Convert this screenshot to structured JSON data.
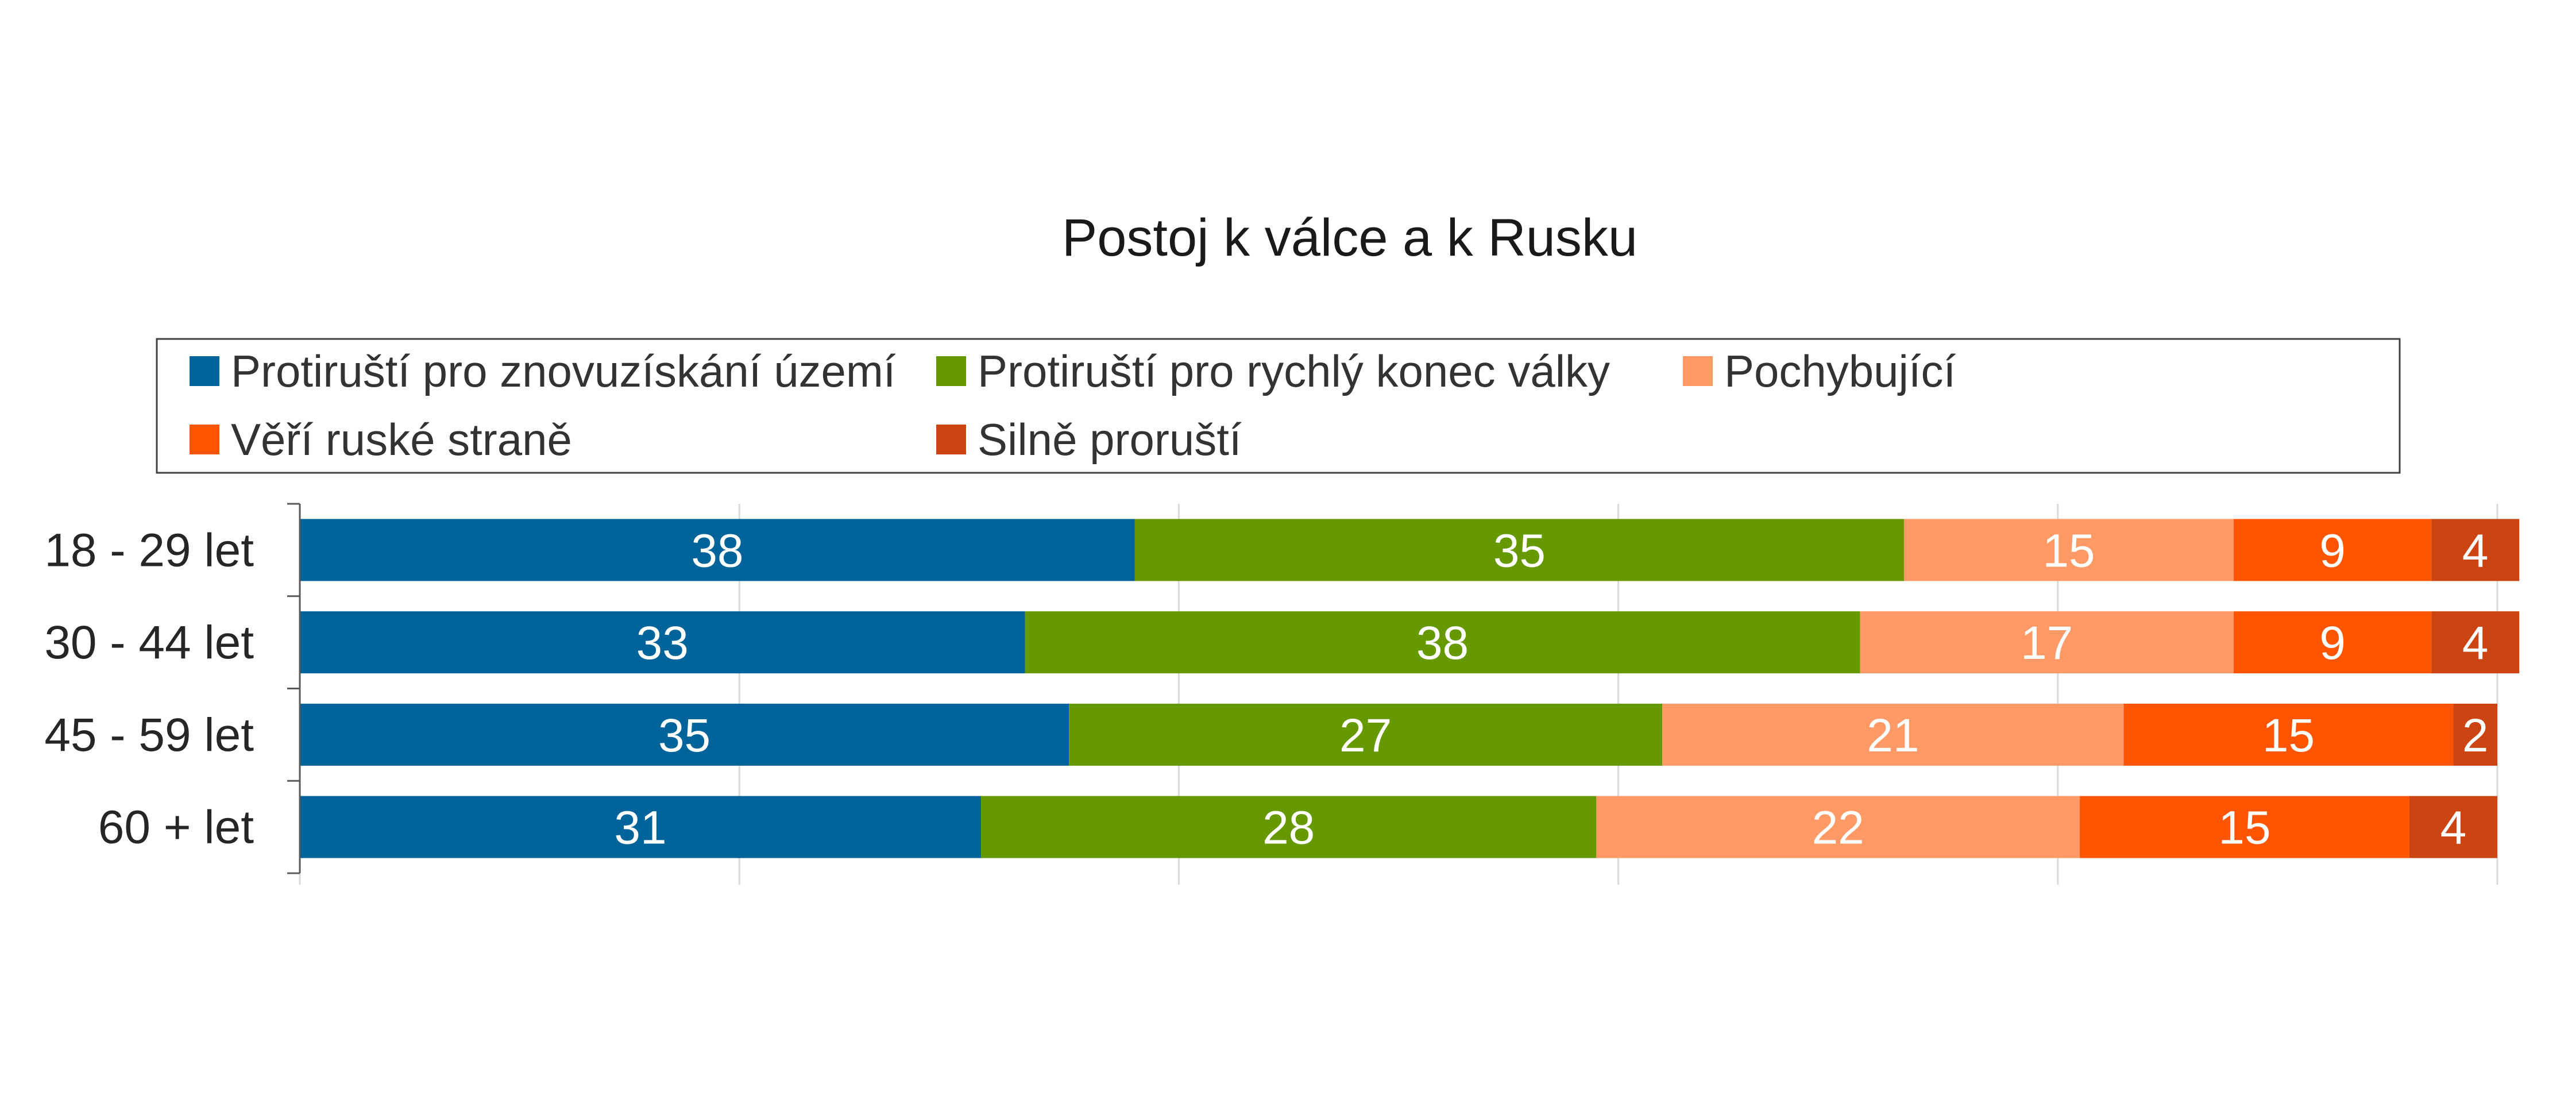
{
  "chart_data": {
    "type": "bar",
    "orientation": "horizontal",
    "stacked": true,
    "title": "Postoj k válce a k Rusku",
    "categories": [
      "18 - 29 let",
      "30 - 44 let",
      "45 - 59 let",
      "60 + let"
    ],
    "series": [
      {
        "name": "Protiruští pro znovuzískání území",
        "color": "#00649b",
        "values": [
          38,
          33,
          35,
          31
        ]
      },
      {
        "name": "Protiruští pro rychlý konec války",
        "color": "#669900",
        "values": [
          35,
          38,
          27,
          28
        ]
      },
      {
        "name": "Pochybující",
        "color": "#ff9966",
        "values": [
          15,
          17,
          21,
          22
        ]
      },
      {
        "name": "Věří ruské straně",
        "color": "#ff5500",
        "values": [
          9,
          9,
          15,
          15
        ]
      },
      {
        "name": "Silně proruští",
        "color": "#cc4411",
        "values": [
          4,
          4,
          2,
          4
        ]
      }
    ],
    "xlim": [
      0,
      100
    ],
    "grid": true,
    "legend_position": "top",
    "data_labels": true
  }
}
